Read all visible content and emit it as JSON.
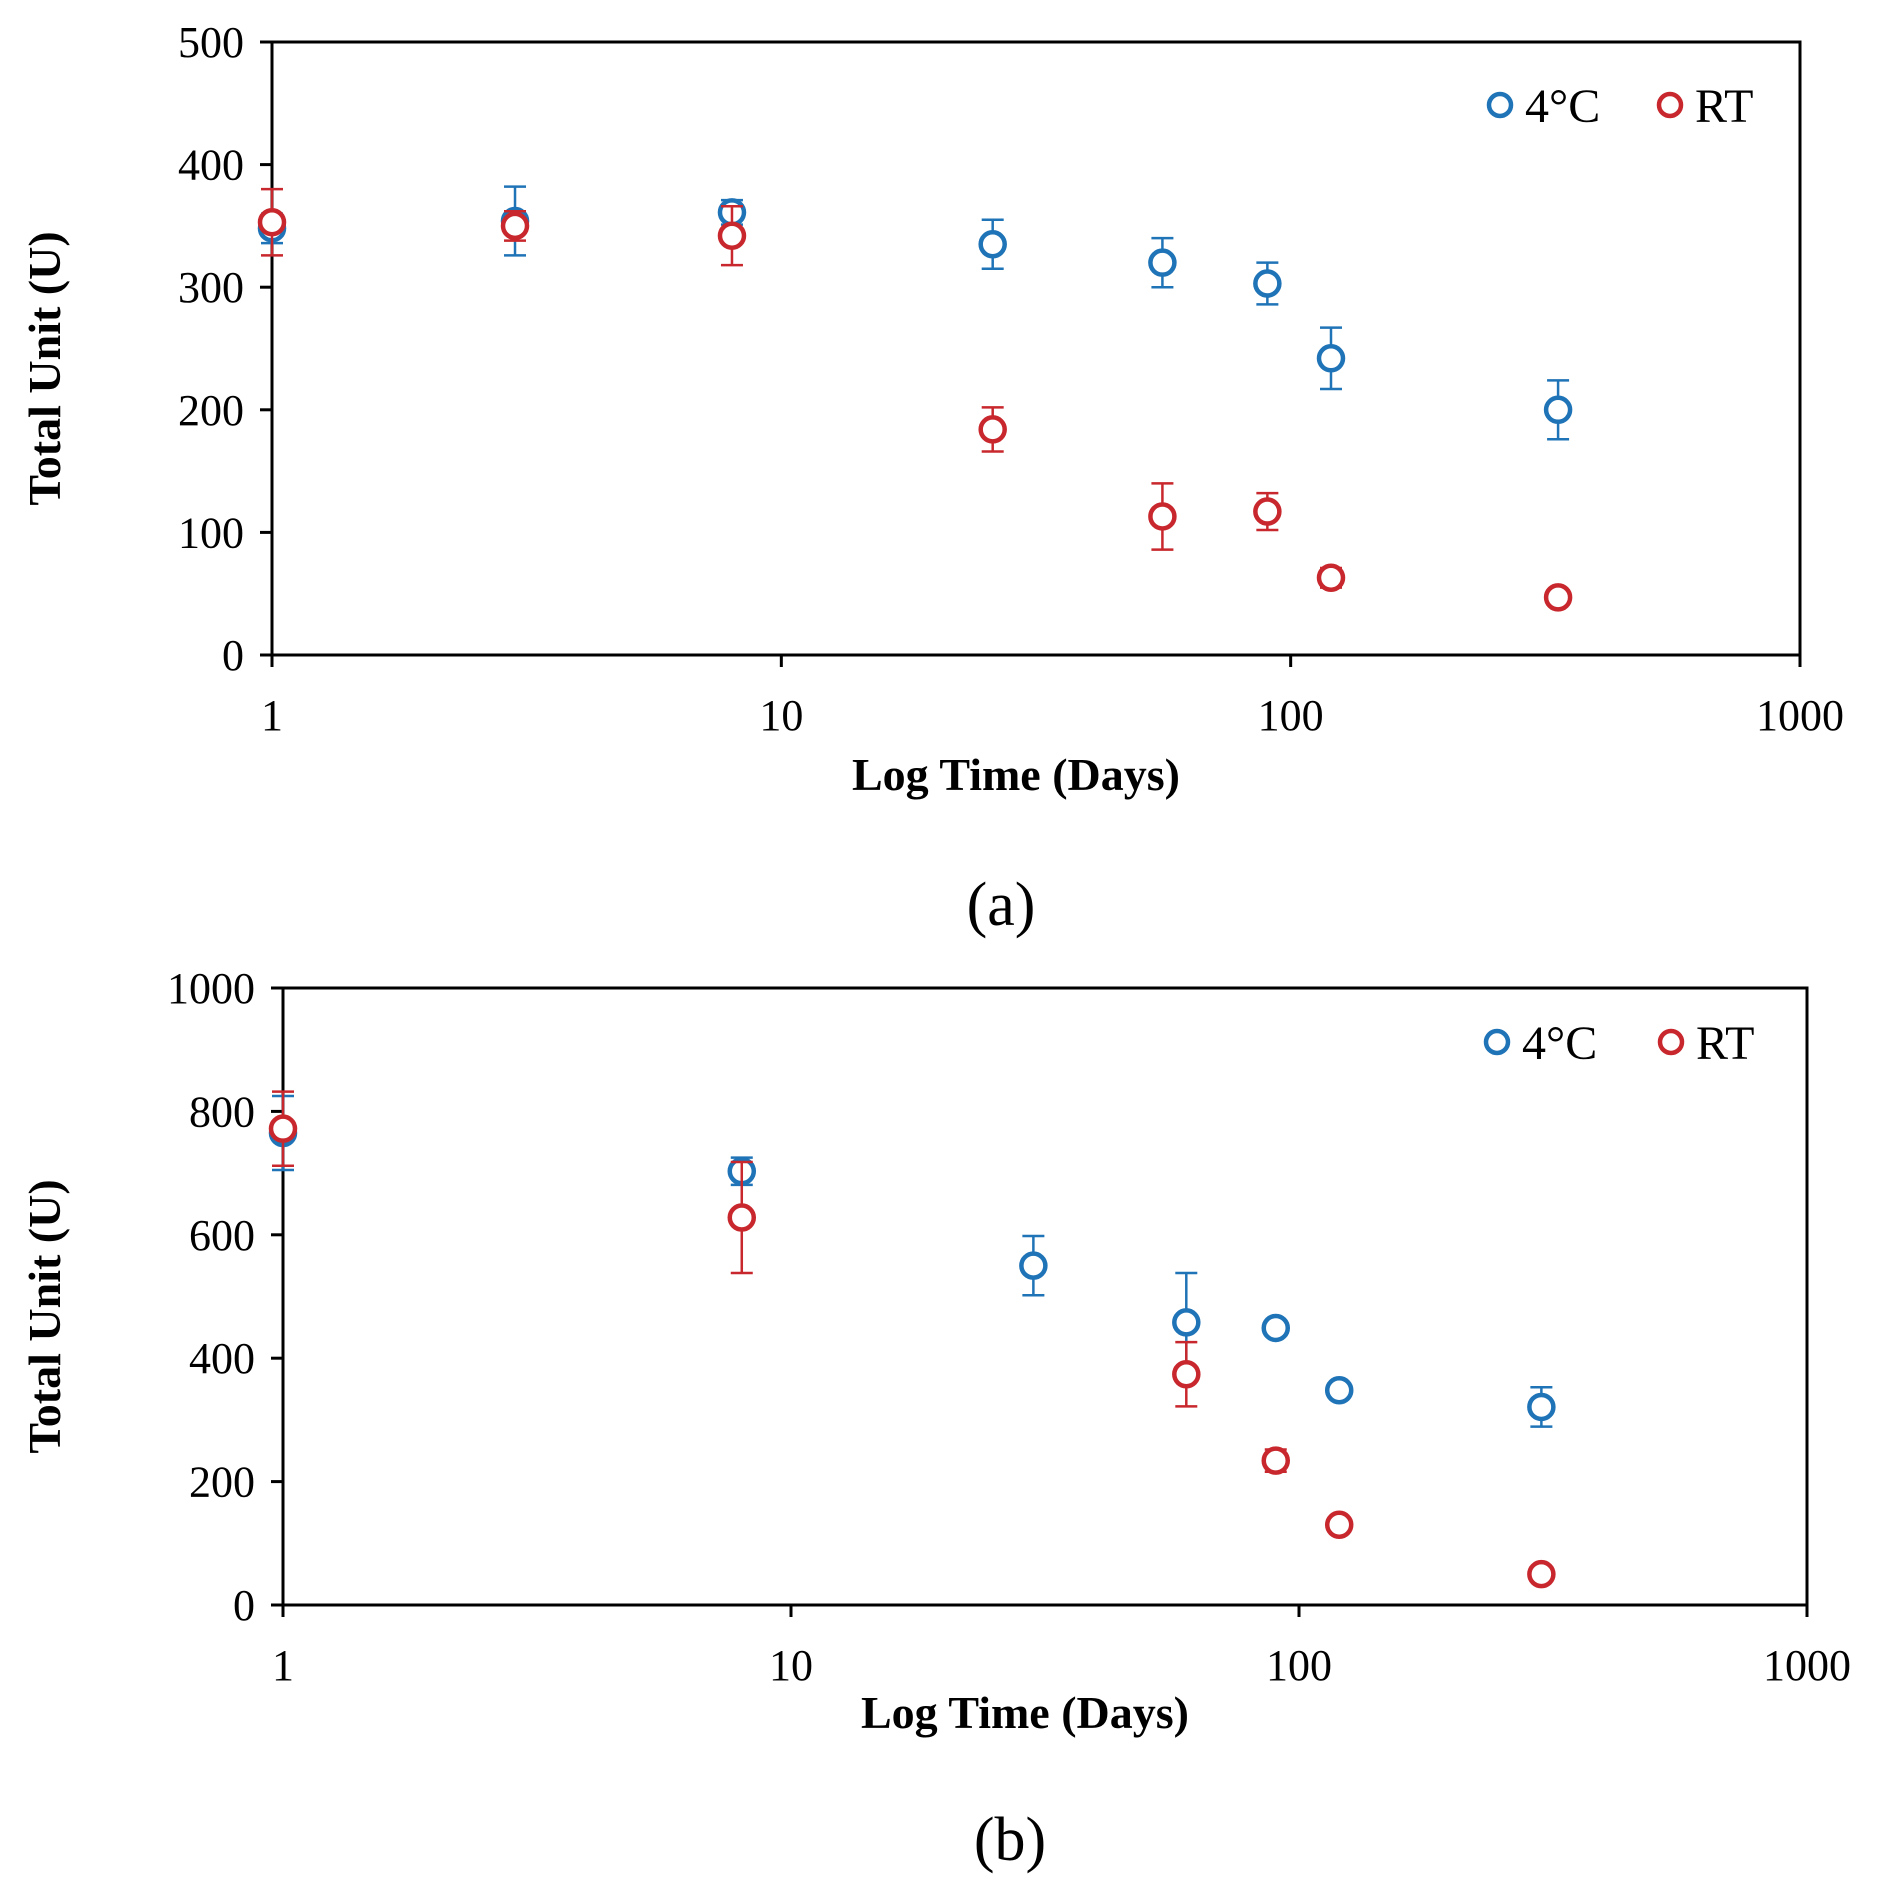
{
  "colors": {
    "c4": "#1f73b7",
    "rt": "#c8282d",
    "axis": "#000000"
  },
  "chart_data": [
    {
      "type": "scatter",
      "panel_label": "(a)",
      "panel_letter": "a",
      "xlabel": "Log Time (Days)",
      "ylabel": "Total Unit (U)",
      "xscale": "log",
      "xlim": [
        1,
        1000
      ],
      "ylim": [
        0,
        500
      ],
      "xticks": [
        "1",
        "10",
        "100",
        "1000"
      ],
      "yticks": [
        "0",
        "100",
        "200",
        "300",
        "400",
        "500"
      ],
      "legend": {
        "position": "top-right",
        "entries": [
          "4°C",
          "RT"
        ]
      },
      "series": [
        {
          "name": "4°C",
          "color_key": "c4",
          "x": [
            1,
            3,
            8,
            26,
            56,
            90,
            120,
            335
          ],
          "y": [
            348,
            354,
            361,
            335,
            320,
            303,
            242,
            200
          ],
          "err": [
            12,
            28,
            10,
            20,
            20,
            17,
            25,
            24
          ]
        },
        {
          "name": "RT",
          "color_key": "rt",
          "x": [
            1,
            3,
            8,
            26,
            56,
            90,
            120,
            335
          ],
          "y": [
            353,
            350,
            342,
            184,
            113,
            117,
            63,
            47
          ],
          "err": [
            27,
            12,
            24,
            18,
            27,
            15,
            8,
            5
          ]
        }
      ]
    },
    {
      "type": "scatter",
      "panel_label": "(b)",
      "panel_letter": "b",
      "xlabel": "Log Time (Days)",
      "ylabel": "Total Unit (U)",
      "xscale": "log",
      "xlim": [
        1,
        1000
      ],
      "ylim": [
        0,
        1000
      ],
      "xticks": [
        "1",
        "10",
        "100",
        "1000"
      ],
      "yticks": [
        "0",
        "200",
        "400",
        "600",
        "800",
        "1000"
      ],
      "legend": {
        "position": "top-right",
        "entries": [
          "4°C",
          "RT"
        ]
      },
      "series": [
        {
          "name": "4°C",
          "color_key": "c4",
          "x": [
            1,
            8,
            30,
            60,
            90,
            120,
            300
          ],
          "y": [
            765,
            703,
            550,
            458,
            449,
            348,
            321
          ],
          "err": [
            60,
            22,
            48,
            80,
            8,
            10,
            32
          ]
        },
        {
          "name": "RT",
          "color_key": "rt",
          "x": [
            1,
            8,
            60,
            90,
            120,
            300
          ],
          "y": [
            772,
            628,
            374,
            234,
            130,
            50
          ],
          "err": [
            60,
            90,
            52,
            18,
            12,
            6
          ]
        }
      ]
    }
  ]
}
